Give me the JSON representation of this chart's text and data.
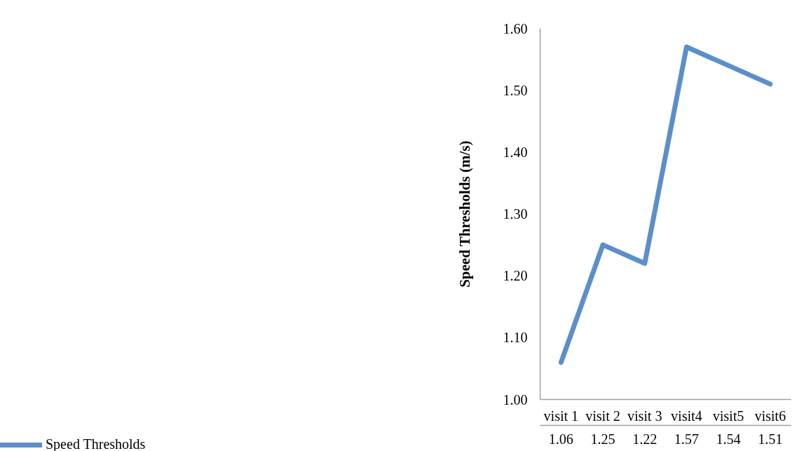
{
  "chart_data": {
    "type": "line",
    "ylabel": "Speed Thresholds (m/s)",
    "categories": [
      "visit 1",
      "visit 2",
      "visit 3",
      "visit4",
      "visit5",
      "visit6"
    ],
    "series": [
      {
        "name": "Speed Thresholds",
        "color": "#5b8fc9",
        "values": [
          1.06,
          1.25,
          1.22,
          1.57,
          1.54,
          1.51
        ]
      }
    ],
    "ylim": [
      1.0,
      1.6
    ],
    "yticks": [
      {
        "value": 1.0,
        "label": "1.00"
      },
      {
        "value": 1.1,
        "label": "1.10"
      },
      {
        "value": 1.2,
        "label": "1.20"
      },
      {
        "value": 1.3,
        "label": "1.30"
      },
      {
        "value": 1.4,
        "label": "1.40"
      },
      {
        "value": 1.5,
        "label": "1.50"
      },
      {
        "value": 1.6,
        "label": "1.60"
      }
    ],
    "data_labels": true,
    "legend": "bottom",
    "grid": false,
    "line_style": "solid"
  }
}
